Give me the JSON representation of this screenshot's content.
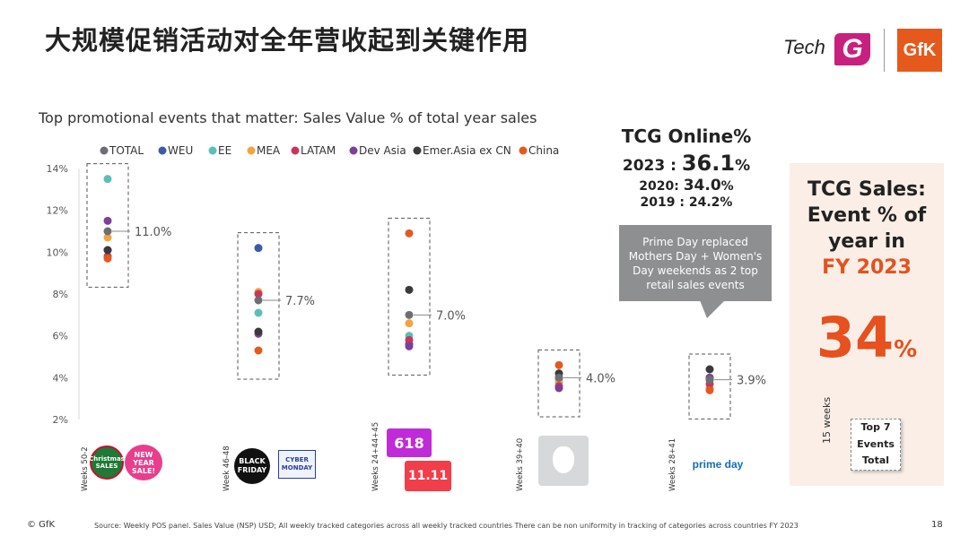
{
  "page": {
    "title": "大规模促销活动对全年营收起到关键作用",
    "subtitle": "Top promotional events that matter: Sales Value % of total year sales",
    "footer_left": "© GfK",
    "source": "Source: Weekly POS panel. Sales Value (NSP) USD; All weekly tracked categories across all weekly tracked countries There can be non uniformity in tracking of categories across countries  FY 2023",
    "page_number": "18"
  },
  "logos": {
    "tech_text": "Tech",
    "tech_g": "G",
    "gfk": "GfK"
  },
  "tcg_online": {
    "title": "TCG Online%",
    "y2023_label": "2023 : ",
    "y2023_value": "36.1",
    "y2023_pct": "%",
    "y2020_label": "2020: ",
    "y2020_value": "34.0",
    "y2020_pct": "%",
    "y2019_label": "2019 : ",
    "y2019_value": "24.2%"
  },
  "callout": {
    "text": "Prime Day replaced Mothers Day + Women's Day weekends as 2 top retail sales events"
  },
  "tcg_sales": {
    "line1": "TCG Sales:",
    "line2": "Event % of",
    "line3": "year in",
    "line4": "FY 2023",
    "value": "34",
    "pct": "%",
    "weeks_label": "15 weeks",
    "top7_line1": "Top 7",
    "top7_line2": "Events",
    "top7_line3": "Total"
  },
  "events": [
    {
      "weeks": "Weeks  50-2",
      "badges": [
        "Christmas SALES",
        "NEW YEAR SALE!"
      ]
    },
    {
      "weeks": "Week  46-48",
      "badges": [
        "BLACK FRIDAY",
        "CYBER MONDAY"
      ]
    },
    {
      "weeks": "Weeks  24+44+45",
      "badges": [
        "618",
        "11.11"
      ]
    },
    {
      "weeks": "Weeks  39+40",
      "badges": [
        ""
      ]
    },
    {
      "weeks": "Weeks 28+41",
      "badges": [
        "prime day"
      ]
    }
  ],
  "colors": {
    "TOTAL": "#6d6e71",
    "WEU": "#3b5ba9",
    "EE": "#5bbfb5",
    "MEA": "#f4a340",
    "LATAM": "#c8365d",
    "Dev Asia": "#7d3f98",
    "Emer.Asia ex CN": "#3a3a3a",
    "China": "#e5591f"
  },
  "chart_data": {
    "type": "scatter",
    "title": "Top promotional events that matter: Sales Value % of total year sales",
    "xlabel": "",
    "ylabel": "",
    "ylim": [
      2,
      14
    ],
    "yticks": [
      "2%",
      "4%",
      "6%",
      "8%",
      "10%",
      "12%",
      "14%"
    ],
    "categories": [
      "Weeks 50-2",
      "Week 46-48",
      "Weeks 24+44+45",
      "Weeks 39+40",
      "Weeks 28+41"
    ],
    "legend_position": "top",
    "totals_labels": [
      "11.0%",
      "7.7%",
      "7.0%",
      "4.0%",
      "3.9%"
    ],
    "series": [
      {
        "name": "TOTAL",
        "values": [
          11.0,
          7.7,
          7.0,
          4.0,
          3.9
        ]
      },
      {
        "name": "WEU",
        "values": [
          10.1,
          10.2,
          5.6,
          4.0,
          4.0
        ]
      },
      {
        "name": "EE",
        "values": [
          13.5,
          7.1,
          6.0,
          3.8,
          3.9
        ]
      },
      {
        "name": "MEA",
        "values": [
          10.7,
          8.1,
          6.6,
          3.9,
          3.5
        ]
      },
      {
        "name": "LATAM",
        "values": [
          9.8,
          8.0,
          5.8,
          3.6,
          3.7
        ]
      },
      {
        "name": "Dev Asia",
        "values": [
          11.5,
          6.1,
          5.5,
          3.5,
          4.0
        ]
      },
      {
        "name": "Emer.Asia ex CN",
        "values": [
          10.1,
          6.2,
          8.2,
          4.2,
          4.4
        ]
      },
      {
        "name": "China",
        "values": [
          9.7,
          5.3,
          10.9,
          4.6,
          3.4
        ]
      }
    ]
  }
}
